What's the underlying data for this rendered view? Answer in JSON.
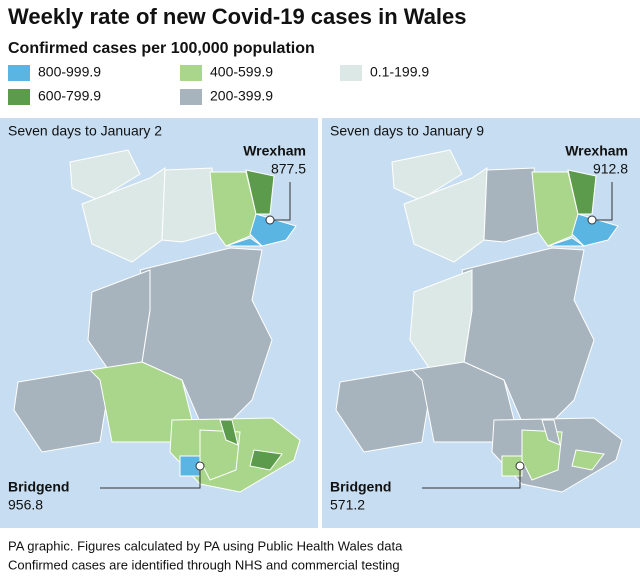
{
  "title": "Weekly rate of new Covid-19 cases in Wales",
  "legend": {
    "title": "Confirmed cases per 100,000 population",
    "items": [
      {
        "label": "800-999.9",
        "color": "#5bb5e3"
      },
      {
        "label": "400-599.9",
        "color": "#a9d68b"
      },
      {
        "label": "0.1-199.9",
        "color": "#dce8e5"
      },
      {
        "label": "600-799.9",
        "color": "#5c9a4c"
      },
      {
        "label": "200-399.9",
        "color": "#a8b4bd"
      }
    ]
  },
  "panels": [
    {
      "title": "Seven days to January 2",
      "annotations": [
        {
          "label": "Wrexham",
          "value": 877.5
        },
        {
          "label": "Bridgend",
          "value": 956.8
        }
      ]
    },
    {
      "title": "Seven days to January 9",
      "annotations": [
        {
          "label": "Wrexham",
          "value": 912.8
        },
        {
          "label": "Bridgend",
          "value": 571.2
        }
      ]
    }
  ],
  "footer": [
    "PA graphic. Figures calculated by PA using Public Health Wales data",
    "Confirmed cases are identified through NHS and commercial testing"
  ]
}
